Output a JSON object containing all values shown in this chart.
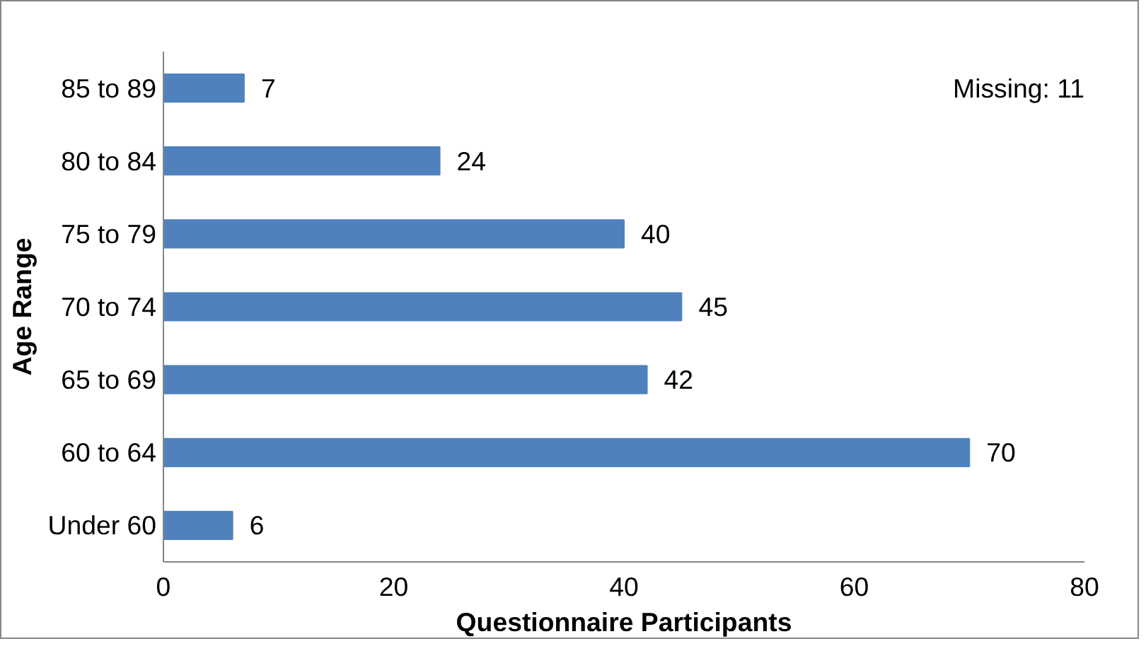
{
  "chart_data": {
    "type": "bar",
    "orientation": "horizontal",
    "categories": [
      "85 to 89",
      "80 to 84",
      "75 to 79",
      "70 to 74",
      "65 to 69",
      "60 to 64",
      "Under 60"
    ],
    "values": [
      7,
      24,
      40,
      45,
      42,
      70,
      6
    ],
    "color": "#4f81bd",
    "xlim": [
      0,
      80
    ],
    "xticks": [
      0,
      20,
      40,
      60,
      80
    ],
    "xlabel": "Questionnaire Participants",
    "ylabel": "Age Range",
    "annotations": [
      "Missing: 11"
    ],
    "data_labels": true,
    "grid": false
  }
}
